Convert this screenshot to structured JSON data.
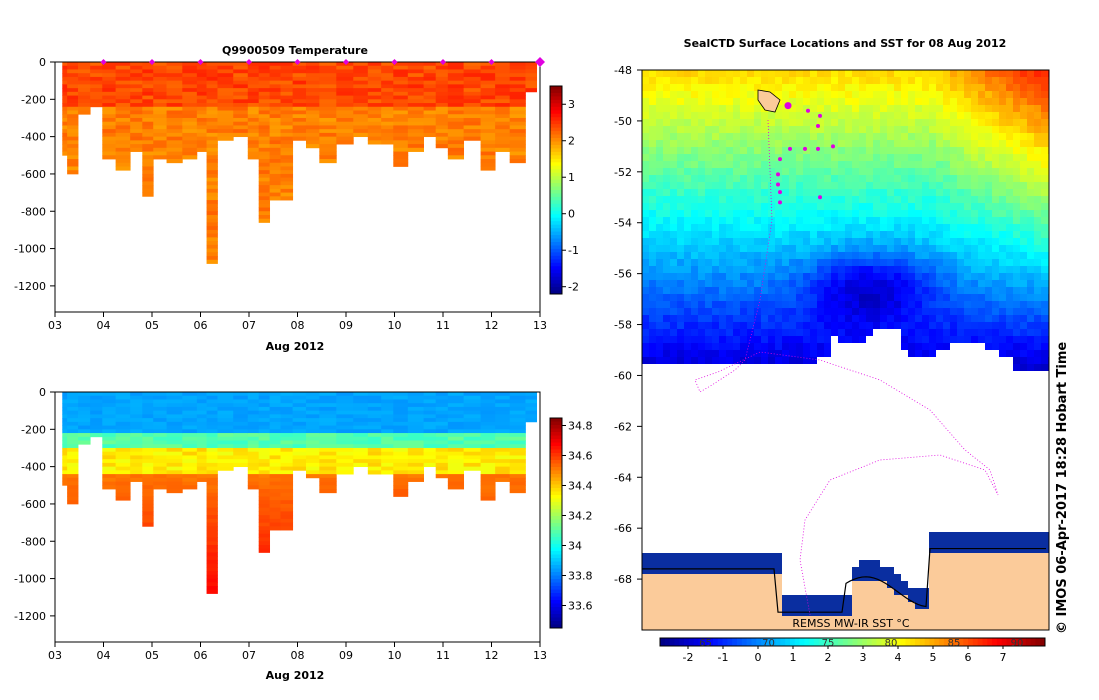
{
  "chart_data": [
    {
      "type": "heatmap",
      "title": "Q9900509  Temperature",
      "xlabel": "Aug 2012",
      "x_tick_labels": [
        "03",
        "04",
        "05",
        "06",
        "07",
        "08",
        "09",
        "10",
        "11",
        "12",
        "13"
      ],
      "y_tick_labels": [
        "0",
        "-200",
        "-400",
        "-600",
        "-800",
        "-1000",
        "-1200"
      ],
      "ylim": [
        -1340,
        0
      ],
      "xlim": [
        3,
        13
      ],
      "colorbar_tick_labels": [
        "3",
        "2",
        "1",
        "0",
        "-1",
        "-2"
      ],
      "colorbar_range": [
        -2.2,
        3.5
      ],
      "variable": "temperature",
      "surface_markers_days": [
        4,
        5,
        6,
        7,
        8,
        9,
        10,
        11,
        12,
        13
      ],
      "profiles": [
        {
          "day": 3.15,
          "max_depth": 500
        },
        {
          "day": 3.35,
          "max_depth": 590
        },
        {
          "day": 3.6,
          "max_depth": 280
        },
        {
          "day": 3.85,
          "max_depth": 230
        },
        {
          "day": 4.1,
          "max_depth": 520
        },
        {
          "day": 4.4,
          "max_depth": 575
        },
        {
          "day": 4.7,
          "max_depth": 480
        },
        {
          "day": 4.9,
          "max_depth": 720
        },
        {
          "day": 5.15,
          "max_depth": 520
        },
        {
          "day": 5.45,
          "max_depth": 540
        },
        {
          "day": 5.8,
          "max_depth": 510
        },
        {
          "day": 6.05,
          "max_depth": 480
        },
        {
          "day": 6.2,
          "max_depth": 1070
        },
        {
          "day": 6.5,
          "max_depth": 410
        },
        {
          "day": 6.85,
          "max_depth": 400
        },
        {
          "day": 7.1,
          "max_depth": 520
        },
        {
          "day": 7.3,
          "max_depth": 860
        },
        {
          "day": 7.55,
          "max_depth": 740
        },
        {
          "day": 7.75,
          "max_depth": 735
        },
        {
          "day": 8.05,
          "max_depth": 420
        },
        {
          "day": 8.3,
          "max_depth": 460
        },
        {
          "day": 8.6,
          "max_depth": 540
        },
        {
          "day": 9.0,
          "max_depth": 440
        },
        {
          "day": 9.3,
          "max_depth": 400
        },
        {
          "day": 9.6,
          "max_depth": 440
        },
        {
          "day": 9.85,
          "max_depth": 440
        },
        {
          "day": 10.1,
          "max_depth": 560
        },
        {
          "day": 10.45,
          "max_depth": 480
        },
        {
          "day": 10.75,
          "max_depth": 400
        },
        {
          "day": 10.95,
          "max_depth": 460
        },
        {
          "day": 11.25,
          "max_depth": 510
        },
        {
          "day": 11.6,
          "max_depth": 420
        },
        {
          "day": 11.95,
          "max_depth": 580
        },
        {
          "day": 12.2,
          "max_depth": 480
        },
        {
          "day": 12.55,
          "max_depth": 540
        },
        {
          "day": 12.85,
          "max_depth": 150
        }
      ]
    },
    {
      "type": "heatmap",
      "title": "",
      "xlabel": "Aug 2012",
      "x_tick_labels": [
        "03",
        "04",
        "05",
        "06",
        "07",
        "08",
        "09",
        "10",
        "11",
        "12",
        "13"
      ],
      "y_tick_labels": [
        "0",
        "-200",
        "-400",
        "-600",
        "-800",
        "-1000",
        "-1200"
      ],
      "ylim": [
        -1340,
        0
      ],
      "xlim": [
        3,
        13
      ],
      "colorbar_tick_labels": [
        "34.8",
        "34.6",
        "34.4",
        "34.2",
        "34",
        "33.8",
        "33.6"
      ],
      "colorbar_range": [
        33.45,
        34.85
      ],
      "variable": "salinity",
      "profiles_same_as_panel": 0
    },
    {
      "type": "heatmap",
      "title": "SealCTD Surface Locations and SST for 08 Aug 2012",
      "y_tick_labels": [
        "-48",
        "-50",
        "-52",
        "-54",
        "-56",
        "-58",
        "-60",
        "-62",
        "-64",
        "-66",
        "-68"
      ],
      "ylim": [
        -70,
        -48
      ],
      "colorbar_label": "REMSS MW-IR SST °C",
      "colorbar_tick_labels": [
        "-2",
        "-1",
        "0",
        "1",
        "2",
        "3",
        "4",
        "5",
        "6",
        "7"
      ],
      "colorbar_tick_labels_overlay": [
        "65",
        "70",
        "75",
        "80",
        "85",
        "90"
      ],
      "colorbar_range": [
        -2.8,
        8.2
      ],
      "surface_locations": [
        {
          "lat": -49.4
        },
        {
          "lat": -49.6
        },
        {
          "lat": -49.8
        },
        {
          "lat": -50.2
        },
        {
          "lat": -51.1
        },
        {
          "lat": -51.1
        },
        {
          "lat": -51.1
        },
        {
          "lat": -51.0
        },
        {
          "lat": -51.5
        },
        {
          "lat": -52.1
        },
        {
          "lat": -52.5
        },
        {
          "lat": -52.8
        },
        {
          "lat": -53.2
        },
        {
          "lat": -53.0
        }
      ]
    }
  ],
  "side_label": "©  IMOS 06-Apr-2017 18:28 Hobart Time"
}
